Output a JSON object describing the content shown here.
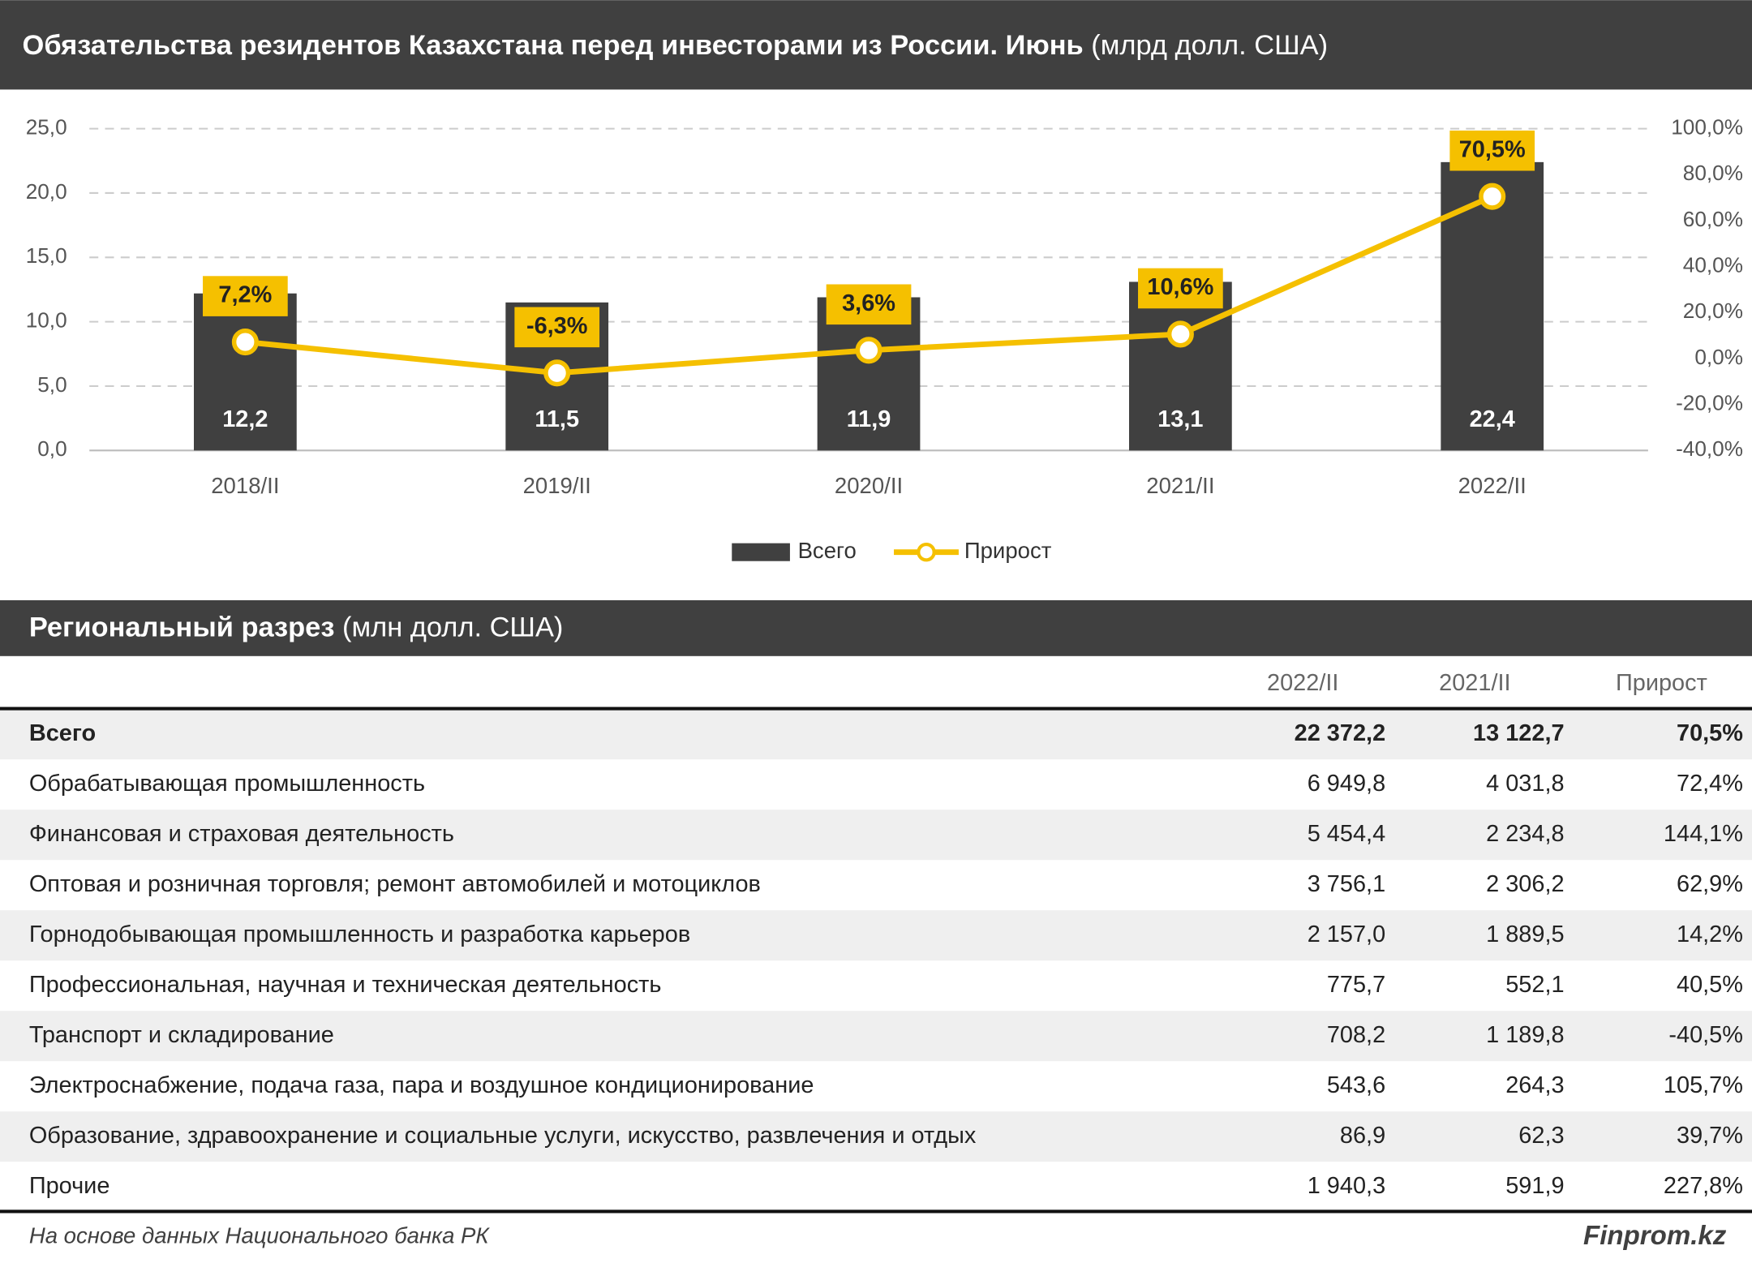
{
  "chart_data": {
    "type": "combo",
    "title": "Обязательства резидентов Казахстана перед инвесторами из России. Июнь",
    "title_unit": "(млрд долл. США)",
    "categories": [
      "2018/II",
      "2019/II",
      "2020/II",
      "2021/II",
      "2022/II"
    ],
    "series": [
      {
        "name": "Всего",
        "type": "bar",
        "color": "#404040",
        "values": [
          12.2,
          11.5,
          11.9,
          13.1,
          22.4
        ],
        "value_labels": [
          "12,2",
          "11,5",
          "11,9",
          "13,1",
          "22,4"
        ]
      },
      {
        "name": "Прирост",
        "type": "line",
        "axis": "y2",
        "color": "#f5c000",
        "values": [
          7.2,
          -6.3,
          3.6,
          10.6,
          70.5
        ],
        "value_labels": [
          "7,2%",
          "-6,3%",
          "3,6%",
          "10,6%",
          "70,5%"
        ]
      }
    ],
    "ylim": [
      0,
      25
    ],
    "yticks": [
      {
        "value": 0,
        "label": "0,0"
      },
      {
        "value": 5,
        "label": "5,0"
      },
      {
        "value": 10,
        "label": "10,0"
      },
      {
        "value": 15,
        "label": "15,0"
      },
      {
        "value": 20,
        "label": "20,0"
      },
      {
        "value": 25,
        "label": "25,0"
      }
    ],
    "y2lim": [
      -40,
      100
    ],
    "y2ticks": [
      {
        "value": -40,
        "label": "-40,0%"
      },
      {
        "value": -20,
        "label": "-20,0%"
      },
      {
        "value": 0,
        "label": "0,0%"
      },
      {
        "value": 20,
        "label": "20,0%"
      },
      {
        "value": 40,
        "label": "40,0%"
      },
      {
        "value": 60,
        "label": "60,0%"
      },
      {
        "value": 80,
        "label": "80,0%"
      },
      {
        "value": 100,
        "label": "100,0%"
      }
    ],
    "grid": true
  },
  "table": {
    "title": "Региональный разрез",
    "title_unit": "(млн долл. США)",
    "columns": [
      "2022/II",
      "2021/II",
      "Прирост"
    ],
    "rows": [
      [
        "Всего",
        "22 372,2",
        "13 122,7",
        "70,5%"
      ],
      [
        "Обрабатывающая промышленность",
        "6 949,8",
        "4 031,8",
        "72,4%"
      ],
      [
        "Финансовая и страховая деятельность",
        "5 454,4",
        "2 234,8",
        "144,1%"
      ],
      [
        "Оптовая и розничная торговля; ремонт автомобилей и мотоциклов",
        "3 756,1",
        "2 306,2",
        "62,9%"
      ],
      [
        "Горнодобывающая промышленность и разработка карьеров",
        "2 157,0",
        "1 889,5",
        "14,2%"
      ],
      [
        "Профессиональная, научная и техническая деятельность",
        "775,7",
        "552,1",
        "40,5%"
      ],
      [
        "Транспорт и складирование",
        "708,2",
        "1 189,8",
        "-40,5%"
      ],
      [
        "Электроснабжение, подача газа, пара и воздушное кондиционирование",
        "543,6",
        "264,3",
        "105,7%"
      ],
      [
        "Образование, здравоохранение и социальные услуги, искусство, развлечения и отдых",
        "86,9",
        "62,3",
        "39,7%"
      ],
      [
        "Прочие",
        "1 940,3",
        "591,9",
        "227,8%"
      ]
    ]
  },
  "footer": {
    "source": "На основе данных Национального банка РК",
    "brand": "Finprom.kz"
  }
}
